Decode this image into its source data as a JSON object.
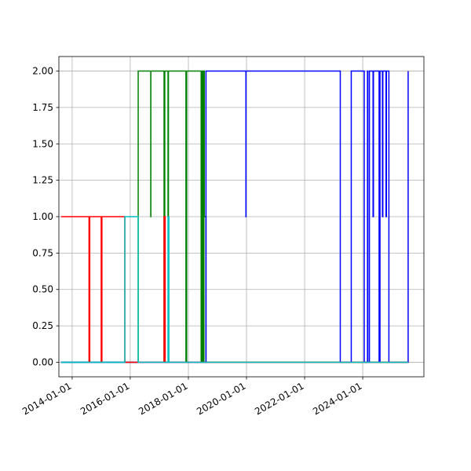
{
  "chart_data": {
    "type": "line",
    "step": "post",
    "title": "",
    "xlabel": "",
    "ylabel": "",
    "x_axis_type": "date",
    "xlim": [
      "2013-07-18",
      "2026-02-08"
    ],
    "ylim": [
      -0.1,
      2.1
    ],
    "x_ticks": [
      "2014-01-01",
      "2016-01-01",
      "2018-01-01",
      "2020-01-01",
      "2022-01-01",
      "2024-01-01"
    ],
    "x_tick_labels": [
      "2014-01-01",
      "2016-01-01",
      "2018-01-01",
      "2020-01-01",
      "2022-01-01",
      "2024-01-01"
    ],
    "x_tick_rotation_deg": 30,
    "y_ticks": [
      0.0,
      0.25,
      0.5,
      0.75,
      1.0,
      1.25,
      1.5,
      1.75,
      2.0
    ],
    "y_tick_labels": [
      "0.00",
      "0.25",
      "0.50",
      "0.75",
      "1.00",
      "1.25",
      "1.50",
      "1.75",
      "2.00"
    ],
    "grid": true,
    "legend": "none",
    "series": [
      {
        "color": "#008000",
        "points": [
          [
            "2013-08-15",
            0
          ],
          [
            "2016-04-10",
            0
          ],
          [
            "2016-04-10",
            2
          ],
          [
            "2016-09-15",
            2
          ],
          [
            "2016-09-15",
            1
          ],
          [
            "2016-09-16",
            1
          ],
          [
            "2016-09-16",
            2
          ],
          [
            "2017-03-01",
            2
          ],
          [
            "2017-03-01",
            0
          ],
          [
            "2017-03-10",
            0
          ],
          [
            "2017-03-10",
            2
          ],
          [
            "2017-04-20",
            2
          ],
          [
            "2017-04-20",
            1
          ],
          [
            "2017-04-25",
            1
          ],
          [
            "2017-04-25",
            2
          ],
          [
            "2017-12-01",
            2
          ],
          [
            "2017-12-01",
            0
          ],
          [
            "2017-12-10",
            0
          ],
          [
            "2017-12-10",
            2
          ],
          [
            "2018-06-10",
            2
          ],
          [
            "2018-06-10",
            0
          ],
          [
            "2018-06-20",
            0
          ],
          [
            "2018-06-20",
            2
          ],
          [
            "2018-06-25",
            2
          ],
          [
            "2018-06-25",
            0
          ],
          [
            "2018-07-05",
            0
          ],
          [
            "2018-07-05",
            2
          ],
          [
            "2018-07-10",
            2
          ],
          [
            "2018-07-10",
            0
          ],
          [
            "2018-07-15",
            0
          ],
          [
            "2018-07-15",
            2
          ],
          [
            "2018-07-20",
            2
          ],
          [
            "2018-07-20",
            1
          ],
          [
            "2018-08-10",
            1
          ],
          [
            "2018-08-10",
            0
          ],
          [
            "2025-07-25",
            0
          ]
        ]
      },
      {
        "color": "#0000ff",
        "points": [
          [
            "2013-08-15",
            0
          ],
          [
            "2018-08-10",
            0
          ],
          [
            "2018-08-10",
            2
          ],
          [
            "2019-12-25",
            2
          ],
          [
            "2019-12-25",
            1
          ],
          [
            "2019-12-26",
            1
          ],
          [
            "2019-12-26",
            2
          ],
          [
            "2023-03-25",
            2
          ],
          [
            "2023-03-25",
            0
          ],
          [
            "2023-08-10",
            0
          ],
          [
            "2023-08-10",
            2
          ],
          [
            "2024-01-20",
            2
          ],
          [
            "2024-01-20",
            0
          ],
          [
            "2024-03-01",
            0
          ],
          [
            "2024-03-01",
            2
          ],
          [
            "2024-03-05",
            2
          ],
          [
            "2024-03-05",
            0
          ],
          [
            "2024-03-25",
            0
          ],
          [
            "2024-03-25",
            2
          ],
          [
            "2024-05-10",
            2
          ],
          [
            "2024-05-10",
            1
          ],
          [
            "2024-05-15",
            1
          ],
          [
            "2024-05-15",
            2
          ],
          [
            "2024-07-25",
            2
          ],
          [
            "2024-07-25",
            0
          ],
          [
            "2024-08-05",
            0
          ],
          [
            "2024-08-05",
            2
          ],
          [
            "2024-09-05",
            2
          ],
          [
            "2024-09-05",
            1
          ],
          [
            "2024-09-10",
            1
          ],
          [
            "2024-09-10",
            2
          ],
          [
            "2024-10-20",
            2
          ],
          [
            "2024-10-20",
            1
          ],
          [
            "2024-10-25",
            1
          ],
          [
            "2024-10-25",
            2
          ],
          [
            "2024-11-25",
            2
          ],
          [
            "2024-11-25",
            0
          ],
          [
            "2025-07-25",
            0
          ],
          [
            "2025-07-25",
            2
          ]
        ]
      },
      {
        "color": "#ff0000",
        "points": [
          [
            "2013-08-15",
            1
          ],
          [
            "2014-08-01",
            1
          ],
          [
            "2014-08-01",
            0
          ],
          [
            "2014-08-10",
            0
          ],
          [
            "2014-08-10",
            1
          ],
          [
            "2015-01-01",
            1
          ],
          [
            "2015-01-01",
            0
          ],
          [
            "2015-01-10",
            0
          ],
          [
            "2015-01-10",
            1
          ],
          [
            "2015-10-25",
            1
          ],
          [
            "2015-10-25",
            0
          ],
          [
            "2017-03-01",
            0
          ],
          [
            "2017-03-01",
            1
          ],
          [
            "2017-03-15",
            1
          ],
          [
            "2017-03-15",
            0
          ],
          [
            "2025-07-25",
            0
          ]
        ]
      },
      {
        "color": "#00bfbf",
        "points": [
          [
            "2013-08-15",
            0
          ],
          [
            "2015-10-25",
            0
          ],
          [
            "2015-10-25",
            1
          ],
          [
            "2016-04-10",
            1
          ],
          [
            "2016-04-10",
            0
          ],
          [
            "2017-04-20",
            0
          ],
          [
            "2017-04-20",
            1
          ],
          [
            "2017-05-01",
            1
          ],
          [
            "2017-05-01",
            0
          ],
          [
            "2025-07-25",
            0
          ]
        ]
      }
    ]
  }
}
